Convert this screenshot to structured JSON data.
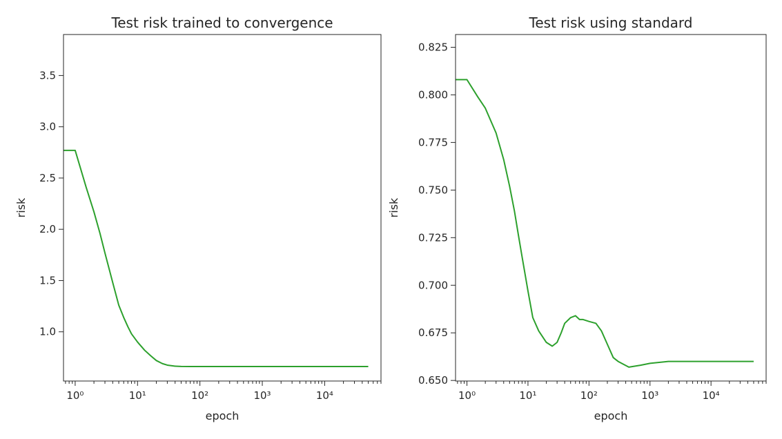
{
  "chart_data": [
    {
      "type": "line",
      "title": "Test risk trained to convergence",
      "xlabel": "epoch",
      "ylabel": "risk",
      "xscale": "log",
      "xlim": [
        0.65,
        80000
      ],
      "ylim": [
        0.52,
        3.9
      ],
      "xticks": [
        1,
        10,
        100,
        1000,
        10000
      ],
      "xtick_labels": [
        "10⁰",
        "10¹",
        "10²",
        "10³",
        "10⁴"
      ],
      "yticks": [
        1.0,
        1.5,
        2.0,
        2.5,
        3.0,
        3.5
      ],
      "ytick_labels": [
        "1.0",
        "1.5",
        "2.0",
        "2.5",
        "3.0",
        "3.5"
      ],
      "grid": false,
      "legend": "none",
      "series": [
        {
          "color": "#2ca02c",
          "x": [
            0.65,
            1,
            1.5,
            2,
            2.5,
            3,
            4,
            5,
            6,
            7,
            8,
            10,
            13,
            16,
            20,
            25,
            30,
            40,
            50,
            70,
            100,
            200,
            500,
            1000,
            5000,
            10000,
            50000
          ],
          "y": [
            2.77,
            2.77,
            2.41,
            2.17,
            1.96,
            1.77,
            1.48,
            1.26,
            1.14,
            1.05,
            0.98,
            0.9,
            0.82,
            0.77,
            0.72,
            0.69,
            0.675,
            0.665,
            0.662,
            0.661,
            0.661,
            0.661,
            0.661,
            0.661,
            0.661,
            0.661,
            0.661
          ]
        }
      ]
    },
    {
      "type": "line",
      "title": "Test risk using standard",
      "xlabel": "epoch",
      "ylabel": "risk",
      "xscale": "log",
      "xlim": [
        0.65,
        80000
      ],
      "ylim": [
        0.6497,
        0.8317
      ],
      "xticks": [
        1,
        10,
        100,
        1000,
        10000
      ],
      "xtick_labels": [
        "10⁰",
        "10¹",
        "10²",
        "10³",
        "10⁴"
      ],
      "yticks": [
        0.65,
        0.675,
        0.7,
        0.725,
        0.75,
        0.775,
        0.8,
        0.825
      ],
      "ytick_labels": [
        "0.650",
        "0.675",
        "0.700",
        "0.725",
        "0.750",
        "0.775",
        "0.800",
        "0.825"
      ],
      "grid": false,
      "legend": "none",
      "series": [
        {
          "color": "#2ca02c",
          "x": [
            0.65,
            1,
            1.5,
            2,
            3,
            4,
            5,
            6,
            7,
            8,
            10,
            12,
            15,
            20,
            25,
            30,
            35,
            40,
            50,
            60,
            70,
            80,
            100,
            130,
            160,
            200,
            250,
            300,
            450,
            700,
            1000,
            2000,
            5000,
            10000,
            50000
          ],
          "y": [
            0.808,
            0.808,
            0.799,
            0.793,
            0.78,
            0.766,
            0.752,
            0.739,
            0.726,
            0.715,
            0.697,
            0.683,
            0.676,
            0.67,
            0.668,
            0.67,
            0.675,
            0.68,
            0.683,
            0.684,
            0.682,
            0.682,
            0.681,
            0.68,
            0.676,
            0.669,
            0.662,
            0.66,
            0.657,
            0.658,
            0.659,
            0.66,
            0.66,
            0.66,
            0.66
          ]
        }
      ]
    }
  ]
}
